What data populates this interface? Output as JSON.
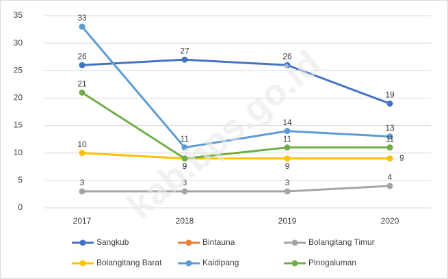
{
  "chart_data": {
    "type": "line",
    "categories": [
      "2017",
      "2018",
      "2019",
      "2020"
    ],
    "series": [
      {
        "name": "Sangkub",
        "color": "#4472c4",
        "values": [
          26,
          27,
          26,
          19
        ]
      },
      {
        "name": "Bintauna",
        "color": "#ed7d31",
        "values": [
          null,
          null,
          null,
          null
        ]
      },
      {
        "name": "Bolangitang Timur",
        "color": "#a5a5a5",
        "values": [
          3,
          3,
          3,
          4
        ]
      },
      {
        "name": "Bolangitang Barat",
        "color": "#ffc000",
        "values": [
          10,
          9,
          9,
          9
        ]
      },
      {
        "name": "Kaidipang",
        "color": "#5b9bd5",
        "values": [
          33,
          11,
          14,
          13
        ]
      },
      {
        "name": "Pinogaluman",
        "color": "#70ad47",
        "values": [
          21,
          9,
          11,
          11
        ]
      }
    ],
    "ylim": [
      0,
      35
    ],
    "yticks": [
      0,
      5,
      10,
      15,
      20,
      25,
      30,
      35
    ],
    "grid": true,
    "legend": "bottom",
    "watermark": "kab.bps.go.id"
  }
}
